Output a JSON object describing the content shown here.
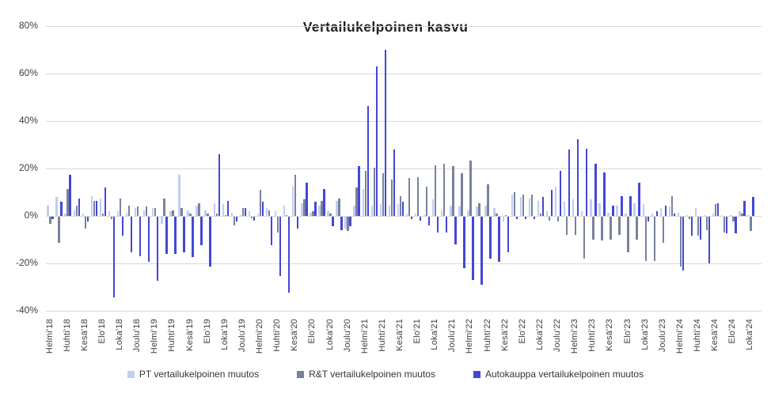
{
  "chart_data": {
    "type": "bar",
    "title": "Vertailukelpoinen kasvu",
    "xlabel": "",
    "ylabel": "",
    "ylim": [
      -40,
      80
    ],
    "grid": true,
    "legend_position": "bottom",
    "y_ticks": [
      {
        "value": 80,
        "label": "80%"
      },
      {
        "value": 60,
        "label": "60%"
      },
      {
        "value": 40,
        "label": "40%"
      },
      {
        "value": 20,
        "label": "20%"
      },
      {
        "value": 0,
        "label": "0%"
      },
      {
        "value": -20,
        "label": "-20%"
      },
      {
        "value": -40,
        "label": "-40%"
      }
    ],
    "n_months": 81,
    "x_first_month": "Helmi'18",
    "x_last_month": "Loka'24",
    "x_tick_every": 2,
    "x_tick_labels": [
      "Helmi'18",
      "Huhti'18",
      "Kesä'18",
      "Elo'18",
      "Loka'18",
      "Joulu'18",
      "Helmi'19",
      "Huhti'19",
      "Kesä'19",
      "Elo'19",
      "Loka'19",
      "Joulu'19",
      "Helmi'20",
      "Huhti'20",
      "Kesä'20",
      "Elo'20",
      "Loka'20",
      "Joulu'20",
      "Helmi'21",
      "Huhti'21",
      "Kesä'21",
      "Elo'21",
      "Loka'21",
      "Joulu'21",
      "Helmi'22",
      "Huhti'22",
      "Kesä'22",
      "Elo'22",
      "Loka'22",
      "Joulu'22",
      "Helmi'23",
      "Huhti'23",
      "Kesä'23",
      "Elo'23",
      "Loka'23",
      "Joulu'23",
      "Helmi'24",
      "Huhti'24",
      "Kesä'24",
      "Elo'24",
      "Loka'24"
    ],
    "series": [
      {
        "name": "PT vertailukelpoinen muutos",
        "color": "#c2cdf1",
        "values": [
          4.5,
          8,
          1,
          2.5,
          1,
          8.5,
          7.5,
          2,
          2,
          1.5,
          3.5,
          2.5,
          3.5,
          -3,
          2,
          17.5,
          2.5,
          4.5,
          2.5,
          5.5,
          5,
          1.5,
          0.5,
          2,
          1,
          3.5,
          2,
          4.5,
          12.5,
          5.5,
          1.5,
          4.5,
          2,
          6.5,
          -5,
          4.5,
          11.5,
          4.5,
          5,
          4.5,
          5,
          1,
          1,
          0.5,
          7,
          2.5,
          4.5,
          4,
          2.5,
          4,
          4.5,
          3.5,
          -2,
          9,
          8,
          7.5,
          6.5,
          2,
          12.5,
          6,
          7,
          2,
          7,
          5.5,
          1.5,
          4.5,
          1,
          5.5,
          5,
          1,
          3.5,
          4,
          1.5,
          0.5,
          3.5,
          0.5,
          1,
          0.5,
          0.5,
          2,
          0.5
        ]
      },
      {
        "name": "R&T vertailukelpoinen muutos",
        "color": "#78829c",
        "values": [
          -3,
          -11,
          11.5,
          4.5,
          -5,
          6.5,
          1,
          -1,
          7.5,
          4.5,
          4,
          4,
          3.5,
          7.5,
          2.5,
          3.5,
          1,
          5.5,
          1,
          1,
          0.5,
          -3.5,
          3.5,
          -0.5,
          11,
          2.5,
          -6.5,
          0.5,
          17.5,
          7,
          2,
          6.5,
          1,
          7.5,
          -6,
          12,
          19,
          20.5,
          18,
          15.5,
          8.5,
          16,
          16.5,
          12.5,
          21.5,
          22,
          21,
          18,
          23.5,
          5.5,
          13.5,
          1,
          0.5,
          10,
          9,
          9,
          1,
          -1.5,
          -2,
          -7.5,
          -7.5,
          -17.5,
          -9.5,
          -10,
          -9.5,
          -7.5,
          -15,
          -9.5,
          -18.5,
          -18.5,
          -11,
          8.5,
          -21,
          -1,
          -8,
          -5.5,
          5,
          -6.5,
          -2,
          1,
          -6
        ]
      },
      {
        "name": "Autokauppa vertailukelpoinen muutos",
        "color": "#4247d8",
        "values": [
          -1,
          6,
          17.5,
          7.5,
          -2,
          6.5,
          12,
          -34,
          -8,
          -15,
          -16.5,
          -19,
          -27,
          -15.5,
          -15.5,
          -15,
          -17,
          -12,
          -21,
          26,
          6.5,
          -2,
          3.5,
          -1.5,
          6,
          -12,
          -25,
          -32,
          -5,
          14,
          6,
          11.5,
          -4,
          -5.5,
          -4,
          21,
          46.5,
          63,
          70,
          28,
          6,
          -1,
          -1.5,
          -3.5,
          -6.5,
          -6.5,
          -11.5,
          -21.5,
          -26.5,
          -28.5,
          -17.5,
          -19,
          -15,
          -1,
          -1,
          -1,
          8,
          11,
          19,
          28,
          32.5,
          28.5,
          22,
          18.5,
          4.5,
          8.5,
          8.5,
          14,
          -2,
          2,
          4.5,
          1,
          -22.5,
          -8,
          -9.5,
          -19.5,
          5.5,
          -7,
          -7,
          6.5,
          8
        ]
      }
    ],
    "colors": {
      "grid": "#d9d9d9",
      "axis_text": "#3d3d3d",
      "title_text": "#1f1f1f",
      "background": "#ffffff"
    }
  }
}
